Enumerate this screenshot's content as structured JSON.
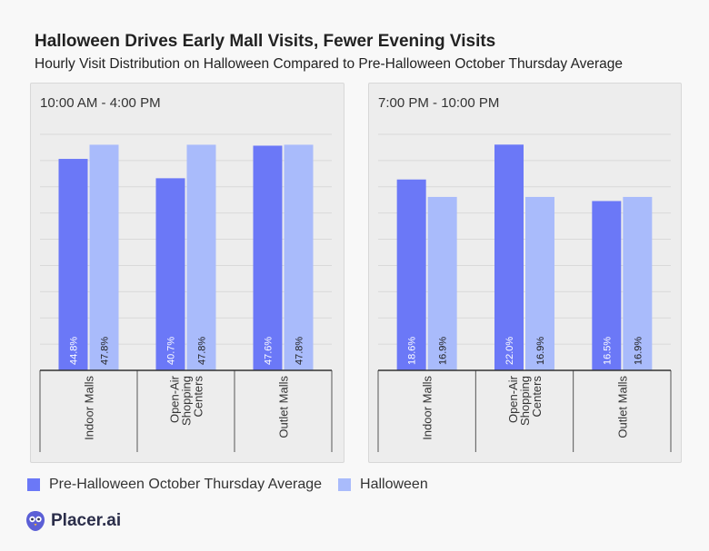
{
  "title": "Halloween Drives Early Mall Visits, Fewer Evening Visits",
  "subtitle": "Hourly Visit Distribution on Halloween Compared to Pre-Halloween October Thursday Average",
  "brand": {
    "name": "Placer.ai",
    "icon": "placer-owl-icon"
  },
  "colors": {
    "pre": "#6b78f7",
    "halloween": "#a9bbfb"
  },
  "legend": {
    "pre_label": "Pre-Halloween October Thursday Average",
    "halloween_label": "Halloween"
  },
  "chart_data": [
    {
      "type": "bar",
      "title": "10:00 AM - 4:00 PM",
      "categories": [
        [
          "Indoor Malls"
        ],
        [
          "Open-Air",
          "Shopping",
          "Centers"
        ],
        [
          "Outlet Malls"
        ]
      ],
      "series": [
        {
          "name": "Pre-Halloween October Thursday Average",
          "values": [
            44.8,
            40.7,
            47.6
          ],
          "labels": [
            "44.8%",
            "40.7%",
            "47.6%"
          ]
        },
        {
          "name": "Halloween",
          "values": [
            47.8,
            47.8,
            47.8
          ],
          "labels": [
            "47.8%",
            "47.8%",
            "47.8%"
          ]
        }
      ],
      "ylim": [
        0,
        50
      ],
      "grid": true
    },
    {
      "type": "bar",
      "title": "7:00 PM - 10:00 PM",
      "categories": [
        [
          "Indoor Malls"
        ],
        [
          "Open-Air",
          "Shopping",
          "Centers"
        ],
        [
          "Outlet Malls"
        ]
      ],
      "series": [
        {
          "name": "Pre-Halloween October Thursday Average",
          "values": [
            18.6,
            22.0,
            16.5
          ],
          "labels": [
            "18.6%",
            "22.0%",
            "16.5%"
          ]
        },
        {
          "name": "Halloween",
          "values": [
            16.9,
            16.9,
            16.9
          ],
          "labels": [
            "16.9%",
            "16.9%",
            "16.9%"
          ]
        }
      ],
      "ylim": [
        0,
        23
      ],
      "grid": true
    }
  ]
}
